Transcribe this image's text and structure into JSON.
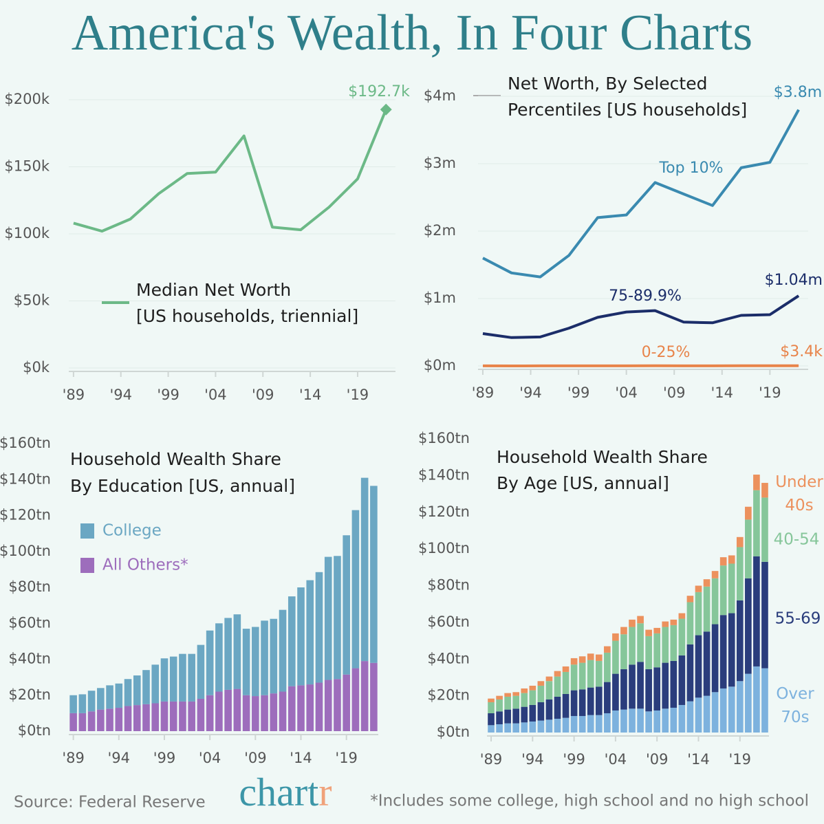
{
  "title": "America's Wealth, In Four Charts",
  "source": "Source: Federal Reserve",
  "logo": "chartr",
  "footnote": "*Includes some college, high school and no high school",
  "chart_data": [
    {
      "type": "line",
      "title": [
        "Median Net Worth",
        "[US households, triennial]"
      ],
      "x": [
        1989,
        1992,
        1995,
        1998,
        2001,
        2004,
        2007,
        2010,
        2013,
        2016,
        2019,
        2022
      ],
      "series": [
        {
          "color": "#6cb987",
          "values": [
            108,
            102,
            111,
            130,
            145,
            146,
            173,
            105,
            103,
            120,
            141,
            192.7
          ],
          "value_labels": [
            null,
            null,
            null,
            null,
            null,
            null,
            null,
            null,
            null,
            null,
            null,
            "$192.7k"
          ]
        }
      ],
      "xlim": [
        1988.5,
        2023
      ],
      "ylim": [
        0,
        200
      ],
      "xticks": [
        {
          "value": 1989,
          "label": "'89"
        },
        {
          "value": 1994,
          "label": "'94"
        },
        {
          "value": 1999,
          "label": "'99"
        },
        {
          "value": 2004,
          "label": "'04"
        },
        {
          "value": 2009,
          "label": "'09"
        },
        {
          "value": 2014,
          "label": "'14"
        },
        {
          "value": 2019,
          "label": "'19"
        }
      ],
      "yticks": [
        {
          "value": 0,
          "label": "$0k"
        },
        {
          "value": 50,
          "label": "$50k"
        },
        {
          "value": 100,
          "label": "$100k"
        },
        {
          "value": 150,
          "label": "$150k"
        },
        {
          "value": 200,
          "label": "$200k"
        }
      ],
      "grid": true
    },
    {
      "type": "line",
      "title": [
        "Net Worth, By Selected",
        "Percentiles [US households]"
      ],
      "x": [
        1989,
        1992,
        1995,
        1998,
        2001,
        2004,
        2007,
        2010,
        2013,
        2016,
        2019,
        2022
      ],
      "series": [
        {
          "name": "Top 10%",
          "color": "#3a8ab0",
          "values": [
            1.6,
            1.38,
            1.32,
            1.64,
            2.2,
            2.24,
            2.72,
            2.55,
            2.38,
            2.94,
            3.02,
            3.8
          ],
          "value_labels": [
            null,
            null,
            null,
            null,
            null,
            null,
            null,
            null,
            null,
            null,
            null,
            "$3.8m"
          ]
        },
        {
          "name": "75-89.9%",
          "color": "#1b2d69",
          "values": [
            0.48,
            0.42,
            0.43,
            0.56,
            0.72,
            0.8,
            0.82,
            0.65,
            0.64,
            0.75,
            0.76,
            1.04
          ],
          "value_labels": [
            null,
            null,
            null,
            null,
            null,
            null,
            null,
            null,
            null,
            null,
            null,
            "$1.04m"
          ]
        },
        {
          "name": "0-25%",
          "color": "#e8844a",
          "values": [
            0.0008,
            0.0005,
            0.0009,
            0.0012,
            0.0015,
            0.0014,
            0.0018,
            0.0006,
            0.0008,
            0.0018,
            0.0026,
            0.0034
          ],
          "value_labels": [
            null,
            null,
            null,
            null,
            null,
            null,
            null,
            null,
            null,
            null,
            null,
            "$3.4k"
          ]
        }
      ],
      "xlim": [
        1988.5,
        2023
      ],
      "ylim": [
        0,
        4
      ],
      "xticks": [
        {
          "value": 1989,
          "label": "'89"
        },
        {
          "value": 1994,
          "label": "'94"
        },
        {
          "value": 1999,
          "label": "'99"
        },
        {
          "value": 2004,
          "label": "'04"
        },
        {
          "value": 2009,
          "label": "'09"
        },
        {
          "value": 2014,
          "label": "'14"
        },
        {
          "value": 2019,
          "label": "'19"
        }
      ],
      "yticks": [
        {
          "value": 0,
          "label": "$0m"
        },
        {
          "value": 1,
          "label": "$1m"
        },
        {
          "value": 2,
          "label": "$2m"
        },
        {
          "value": 3,
          "label": "$3m"
        },
        {
          "value": 4,
          "label": "$4m"
        }
      ],
      "grid": true
    },
    {
      "type": "bar",
      "title": [
        "Household Wealth Share",
        "By Education [US, annual]"
      ],
      "x": [
        1989,
        1990,
        1991,
        1992,
        1993,
        1994,
        1995,
        1996,
        1997,
        1998,
        1999,
        2000,
        2001,
        2002,
        2003,
        2004,
        2005,
        2006,
        2007,
        2008,
        2009,
        2010,
        2011,
        2012,
        2013,
        2014,
        2015,
        2016,
        2017,
        2018,
        2019,
        2020,
        2021,
        2022
      ],
      "series": [
        {
          "name": "College",
          "color": "#6ba7c3",
          "values": [
            10,
            10.5,
            11.5,
            12,
            13,
            13.5,
            15,
            16.5,
            19,
            21.5,
            24,
            25,
            26.5,
            26.5,
            30,
            36,
            38,
            40,
            41.5,
            37,
            38.5,
            41.5,
            41.5,
            45.5,
            50,
            54.5,
            58,
            61.5,
            68.5,
            68.5,
            77.5,
            88,
            102,
            98.5
          ]
        },
        {
          "name": "All Others*",
          "color": "#9d6dbc",
          "values": [
            10,
            10,
            11,
            12,
            12.5,
            13,
            14,
            14.5,
            15,
            15.5,
            16.5,
            16.5,
            16.5,
            16.5,
            18,
            20,
            22,
            23,
            23.5,
            20,
            19.5,
            20,
            21,
            22,
            25,
            25.5,
            26,
            27,
            28.5,
            29,
            31.5,
            35,
            39,
            38
          ]
        }
      ],
      "xlim": [
        1988.5,
        2022.5
      ],
      "ylim": [
        0,
        160
      ],
      "xticks": [
        {
          "value": 1989,
          "label": "'89"
        },
        {
          "value": 1994,
          "label": "'94"
        },
        {
          "value": 1999,
          "label": "'99"
        },
        {
          "value": 2004,
          "label": "'04"
        },
        {
          "value": 2009,
          "label": "'09"
        },
        {
          "value": 2014,
          "label": "'14"
        },
        {
          "value": 2019,
          "label": "'19"
        }
      ],
      "yticks": [
        {
          "value": 0,
          "label": "$0tn"
        },
        {
          "value": 20,
          "label": "$20tn"
        },
        {
          "value": 40,
          "label": "$40tn"
        },
        {
          "value": 60,
          "label": "$60tn"
        },
        {
          "value": 80,
          "label": "$80tn"
        },
        {
          "value": 100,
          "label": "$100tn"
        },
        {
          "value": 120,
          "label": "$120tn"
        },
        {
          "value": 140,
          "label": "$140tn"
        },
        {
          "value": 160,
          "label": "$160tn"
        }
      ],
      "grid": false
    },
    {
      "type": "bar",
      "title": [
        "Household Wealth Share",
        "By Age [US, annual]"
      ],
      "x": [
        1989,
        1990,
        1991,
        1992,
        1993,
        1994,
        1995,
        1996,
        1997,
        1998,
        1999,
        2000,
        2001,
        2002,
        2003,
        2004,
        2005,
        2006,
        2007,
        2008,
        2009,
        2010,
        2011,
        2012,
        2013,
        2014,
        2015,
        2016,
        2017,
        2018,
        2019,
        2020,
        2021,
        2022
      ],
      "series": [
        {
          "name": "Under 40s",
          "color": "#ec915d",
          "values": [
            2,
            2,
            2,
            2,
            2.5,
            2.5,
            2.5,
            2.5,
            3,
            3,
            3.5,
            3.5,
            3.5,
            3.5,
            3.5,
            4,
            4,
            4,
            4,
            3.5,
            3,
            3,
            3,
            3,
            3.5,
            3.5,
            4,
            4,
            4.5,
            4.5,
            5.5,
            7,
            8.5,
            8
          ]
        },
        {
          "name": "40-54",
          "color": "#86c69a",
          "values": [
            6,
            6.5,
            7,
            7,
            7.5,
            8,
            9,
            10,
            11,
            12,
            14,
            14.5,
            15,
            14,
            16,
            18,
            19,
            20.5,
            21,
            18,
            18.5,
            19.5,
            19.5,
            20,
            23,
            23.5,
            24.5,
            25,
            27,
            27,
            29,
            32,
            36,
            35
          ]
        },
        {
          "name": "55-69",
          "color": "#2a3d7c",
          "values": [
            6.5,
            7,
            7.5,
            8,
            8.5,
            9,
            10,
            11,
            12,
            13,
            14,
            14.5,
            15,
            15.5,
            17,
            20,
            22,
            24,
            25.5,
            23,
            23.5,
            25,
            25.5,
            27,
            31,
            34,
            35,
            37,
            40,
            40,
            44,
            52,
            60,
            58
          ]
        },
        {
          "name": "Over 70s",
          "color": "#7db2de",
          "values": [
            4,
            4.5,
            5,
            5,
            5.5,
            6,
            6.5,
            7,
            7.5,
            8,
            9,
            9,
            9.5,
            9.5,
            10.5,
            12,
            12.5,
            13,
            13,
            11.5,
            12,
            13,
            13.5,
            15,
            17,
            19,
            20,
            22,
            24,
            25,
            28,
            32,
            36,
            35
          ]
        }
      ],
      "xlim": [
        1988.5,
        2022.5
      ],
      "ylim": [
        0,
        160
      ],
      "xticks": [
        {
          "value": 1989,
          "label": "'89"
        },
        {
          "value": 1994,
          "label": "'94"
        },
        {
          "value": 1999,
          "label": "'99"
        },
        {
          "value": 2004,
          "label": "'04"
        },
        {
          "value": 2009,
          "label": "'09"
        },
        {
          "value": 2014,
          "label": "'14"
        },
        {
          "value": 2019,
          "label": "'19"
        }
      ],
      "yticks": [
        {
          "value": 0,
          "label": "$0tn"
        },
        {
          "value": 20,
          "label": "$20tn"
        },
        {
          "value": 40,
          "label": "$40tn"
        },
        {
          "value": 60,
          "label": "$60tn"
        },
        {
          "value": 80,
          "label": "$80tn"
        },
        {
          "value": 100,
          "label": "$100tn"
        },
        {
          "value": 120,
          "label": "$120tn"
        },
        {
          "value": 140,
          "label": "$140tn"
        },
        {
          "value": 160,
          "label": "$160tn"
        }
      ],
      "grid": false
    }
  ]
}
